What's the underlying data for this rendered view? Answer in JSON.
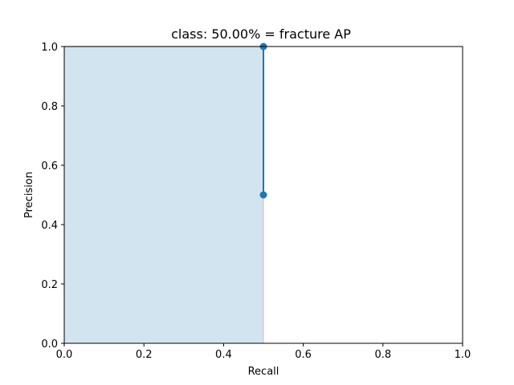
{
  "chart_data": {
    "type": "area",
    "title": "class: 50.00% = fracture AP",
    "xlabel": "Recall",
    "ylabel": "Precision",
    "xlim": [
      0.0,
      1.0
    ],
    "ylim": [
      0.0,
      1.0
    ],
    "x_ticks": [
      "0.0",
      "0.2",
      "0.4",
      "0.6",
      "0.8",
      "1.0"
    ],
    "y_ticks": [
      "0.0",
      "0.2",
      "0.4",
      "0.6",
      "0.8",
      "1.0"
    ],
    "grid": false,
    "legend": "none",
    "series": [
      {
        "kind": "line_markers",
        "color": "#1f77b4",
        "points": [
          {
            "x": 0.5,
            "y": 1.0
          },
          {
            "x": 0.5,
            "y": 0.5
          }
        ]
      },
      {
        "kind": "filled_area",
        "fill_color": "#1f77b4",
        "fill_opacity": 0.2,
        "edge_color": "#d62728",
        "edge_opacity": 0.2,
        "points": [
          {
            "x": 0.0,
            "y": 1.0
          },
          {
            "x": 0.5,
            "y": 1.0
          },
          {
            "x": 0.5,
            "y": 0.0
          }
        ]
      }
    ]
  }
}
